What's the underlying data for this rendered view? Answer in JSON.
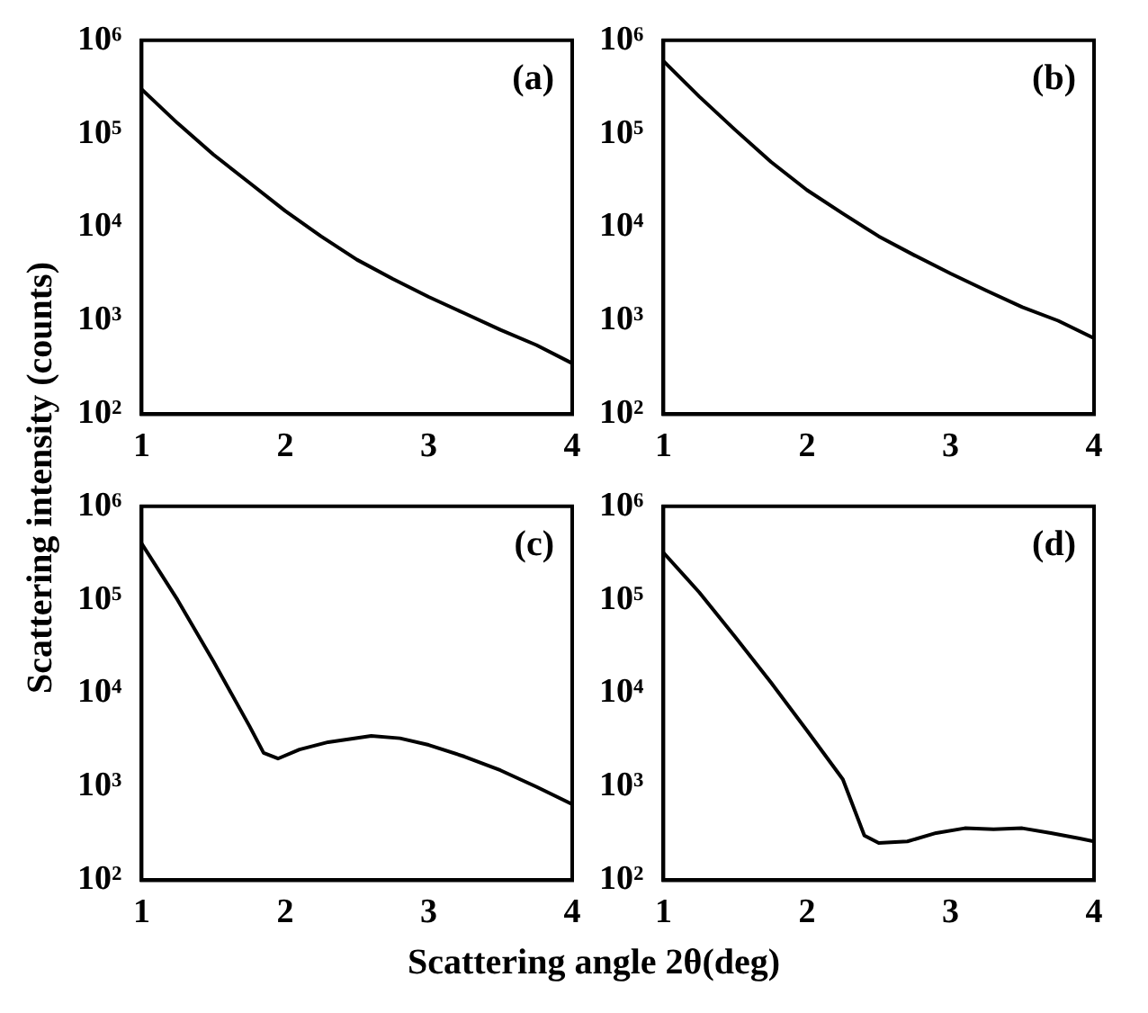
{
  "chart_data": [
    {
      "type": "line",
      "annotations": [
        "(a)"
      ],
      "ylabel": "Scattering intensity (counts)",
      "log": "y",
      "grid": false,
      "xlim": [
        1,
        4
      ],
      "xticks": [
        1,
        2,
        3,
        4
      ],
      "ylim": [
        100,
        1000000
      ],
      "yticks": [
        {
          "value": 100,
          "label": "10²"
        },
        {
          "value": 1000,
          "label": "10³"
        },
        {
          "value": 10000,
          "label": "10⁴"
        },
        {
          "value": 100000,
          "label": "10⁵"
        },
        {
          "value": 1000000,
          "label": "10⁶"
        }
      ],
      "series": [
        {
          "color": "#000000",
          "x": [
            1,
            1.25,
            1.5,
            1.75,
            2,
            2.25,
            2.5,
            2.75,
            3,
            3.25,
            3.5,
            3.75,
            4
          ],
          "values": [
            300000,
            130000,
            60000,
            30000,
            15000,
            8000,
            4500,
            2800,
            1800,
            1200,
            800,
            550,
            350
          ]
        }
      ]
    },
    {
      "type": "line",
      "annotations": [
        "(b)"
      ],
      "log": "y",
      "grid": false,
      "xlim": [
        1,
        4
      ],
      "xticks": [
        1,
        2,
        3,
        4
      ],
      "ylim": [
        100,
        1000000
      ],
      "yticks": [
        {
          "value": 100,
          "label": "10²"
        },
        {
          "value": 1000,
          "label": "10³"
        },
        {
          "value": 10000,
          "label": "10⁴"
        },
        {
          "value": 100000,
          "label": "10⁵"
        },
        {
          "value": 1000000,
          "label": "10⁶"
        }
      ],
      "series": [
        {
          "color": "#000000",
          "x": [
            1,
            1.25,
            1.5,
            1.75,
            2,
            2.25,
            2.5,
            2.75,
            3,
            3.25,
            3.5,
            3.75,
            4
          ],
          "values": [
            600000,
            250000,
            110000,
            50000,
            25000,
            14000,
            8000,
            5000,
            3200,
            2100,
            1400,
            1000,
            650
          ]
        }
      ]
    },
    {
      "type": "line",
      "annotations": [
        "(c)"
      ],
      "xlabel": "Scattering angle 2θ(deg)",
      "log": "y",
      "grid": false,
      "xlim": [
        1,
        4
      ],
      "xticks": [
        1,
        2,
        3,
        4
      ],
      "ylim": [
        100,
        1000000
      ],
      "yticks": [
        {
          "value": 100,
          "label": "10²"
        },
        {
          "value": 1000,
          "label": "10³"
        },
        {
          "value": 10000,
          "label": "10⁴"
        },
        {
          "value": 100000,
          "label": "10⁵"
        },
        {
          "value": 1000000,
          "label": "10⁶"
        }
      ],
      "series": [
        {
          "color": "#000000",
          "x": [
            1,
            1.25,
            1.5,
            1.75,
            1.85,
            1.95,
            2.1,
            2.3,
            2.6,
            2.8,
            3,
            3.25,
            3.5,
            3.75,
            4
          ],
          "values": [
            400000,
            100000,
            22000,
            4500,
            2300,
            2000,
            2500,
            3000,
            3500,
            3300,
            2800,
            2100,
            1500,
            1000,
            650
          ]
        }
      ]
    },
    {
      "type": "line",
      "annotations": [
        "(d)"
      ],
      "log": "y",
      "grid": false,
      "xlim": [
        1,
        4
      ],
      "xticks": [
        1,
        2,
        3,
        4
      ],
      "ylim": [
        100,
        1000000
      ],
      "yticks": [
        {
          "value": 100,
          "label": "10²"
        },
        {
          "value": 1000,
          "label": "10³"
        },
        {
          "value": 10000,
          "label": "10⁴"
        },
        {
          "value": 100000,
          "label": "10⁵"
        },
        {
          "value": 1000000,
          "label": "10⁶"
        }
      ],
      "series": [
        {
          "color": "#000000",
          "x": [
            1,
            1.25,
            1.5,
            1.75,
            2,
            2.25,
            2.4,
            2.5,
            2.7,
            2.9,
            3.1,
            3.3,
            3.5,
            3.7,
            3.9,
            4
          ],
          "values": [
            320000,
            120000,
            40000,
            13000,
            4000,
            1200,
            300,
            250,
            260,
            320,
            360,
            350,
            360,
            320,
            280,
            260
          ]
        }
      ]
    }
  ]
}
